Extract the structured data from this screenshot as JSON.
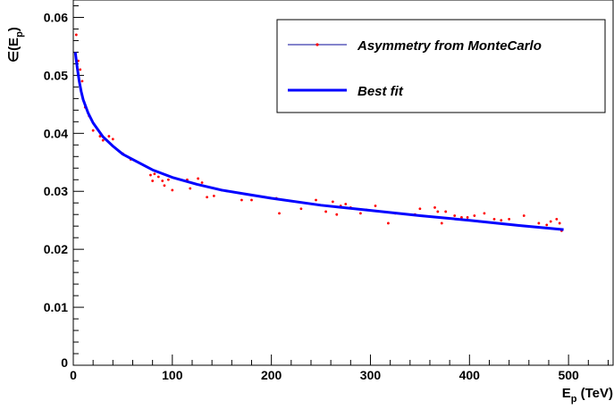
{
  "chart_data": {
    "type": "scatter",
    "title": "",
    "xlabel": "E_p (TeV)",
    "xlabel_main": "E",
    "xlabel_sub": "p",
    "xlabel_unit": " (TeV)",
    "ylabel": "ε(E_p)",
    "ylabel_main": "∈(E",
    "ylabel_sub": "p",
    "ylabel_close": ")",
    "xlim": [
      0,
      545
    ],
    "ylim": [
      0,
      0.063
    ],
    "x_ticks": [
      0,
      100,
      200,
      300,
      400,
      500
    ],
    "x_tick_labels": [
      "0",
      "100",
      "200",
      "300",
      "400",
      "500"
    ],
    "y_ticks": [
      0,
      0.01,
      0.02,
      0.03,
      0.04,
      0.05,
      0.06
    ],
    "y_tick_labels": [
      "0",
      "0.01",
      "0.02",
      "0.03",
      "0.04",
      "0.05",
      "0.06"
    ],
    "grid": false,
    "legend_position": "top-right",
    "series": [
      {
        "name": "Asymmetry from MonteCarlo",
        "kind": "scatter",
        "color": "#ff0000",
        "x": [
          3,
          5,
          7,
          9,
          12,
          16,
          20,
          27,
          30,
          36,
          40,
          50,
          58,
          78,
          80,
          82,
          86,
          90,
          92,
          96,
          100,
          115,
          118,
          126,
          130,
          135,
          142,
          150,
          170,
          180,
          205,
          208,
          230,
          245,
          255,
          262,
          266,
          270,
          275,
          280,
          290,
          296,
          305,
          318,
          325,
          345,
          350,
          365,
          368,
          372,
          376,
          385,
          392,
          398,
          405,
          410,
          415,
          425,
          432,
          440,
          455,
          470,
          478,
          482,
          488,
          491,
          493
        ],
        "y": [
          0.057,
          0.0525,
          0.051,
          0.049,
          0.0445,
          0.043,
          0.0405,
          0.0395,
          0.0388,
          0.0395,
          0.039,
          0.0365,
          0.0355,
          0.0328,
          0.0318,
          0.033,
          0.0325,
          0.0318,
          0.031,
          0.032,
          0.0302,
          0.032,
          0.0305,
          0.0322,
          0.0315,
          0.029,
          0.0292,
          0.0302,
          0.0285,
          0.0285,
          0.0288,
          0.0262,
          0.027,
          0.0285,
          0.0265,
          0.0282,
          0.026,
          0.0275,
          0.0278,
          0.0272,
          0.0262,
          0.0268,
          0.0275,
          0.0245,
          0.0262,
          0.026,
          0.027,
          0.0272,
          0.0265,
          0.0245,
          0.0265,
          0.0258,
          0.0255,
          0.0255,
          0.0258,
          0.0248,
          0.0262,
          0.0252,
          0.025,
          0.0252,
          0.0258,
          0.0245,
          0.0242,
          0.0248,
          0.0252,
          0.0245,
          0.0232
        ]
      },
      {
        "name": "Best fit",
        "kind": "line",
        "color": "#0000ff",
        "x": [
          2,
          4,
          6,
          8,
          10,
          15,
          20,
          30,
          40,
          50,
          60,
          80,
          100,
          125,
          150,
          175,
          200,
          250,
          300,
          350,
          400,
          450,
          495
        ],
        "y": [
          0.054,
          0.0513,
          0.049,
          0.0472,
          0.0458,
          0.0435,
          0.0418,
          0.0394,
          0.0378,
          0.0364,
          0.0355,
          0.0337,
          0.0324,
          0.0312,
          0.0302,
          0.0295,
          0.0288,
          0.0276,
          0.0267,
          0.0258,
          0.025,
          0.0241,
          0.0234
        ]
      }
    ]
  }
}
